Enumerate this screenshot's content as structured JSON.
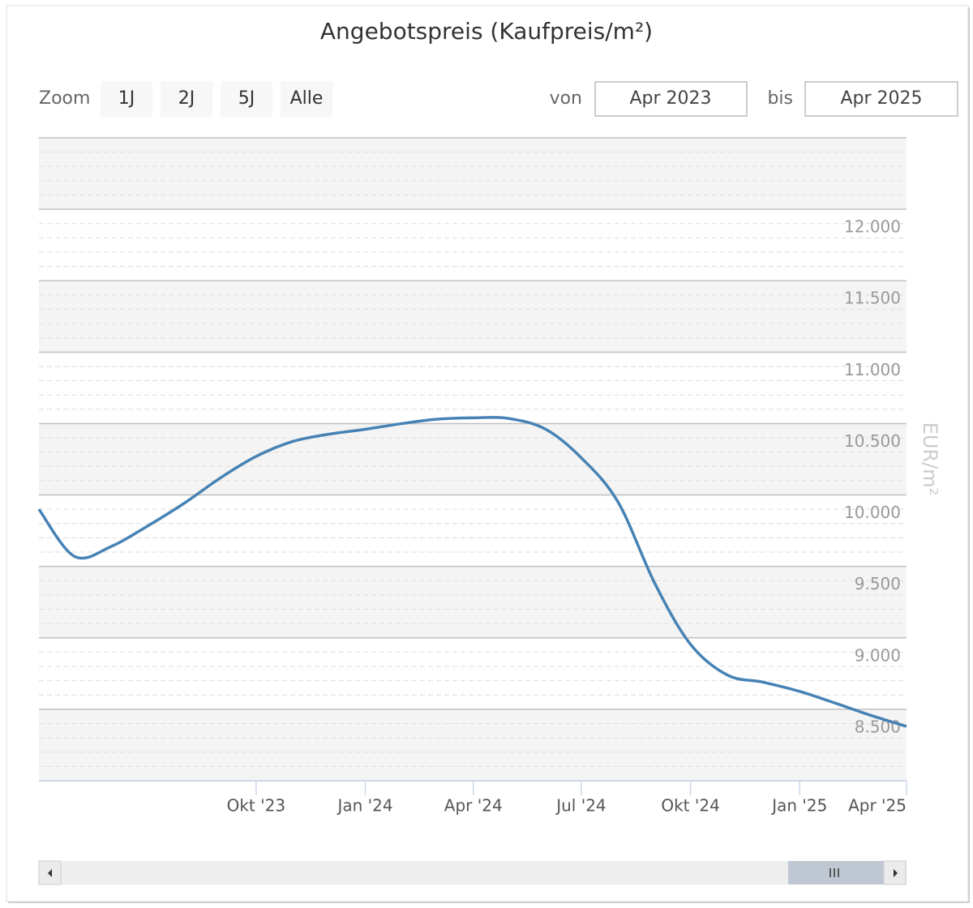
{
  "range_selector": {
    "label": "Zoom",
    "buttons": [
      "1J",
      "2J",
      "5J",
      "Alle"
    ],
    "from_label": "von",
    "from": "Apr 2023",
    "to_label": "bis",
    "to": "Apr 2025"
  },
  "chart_data": {
    "type": "line",
    "title": "Angebotspreis (Kaufpreis/m²)",
    "y_axis_label": "EUR/m²",
    "x": [
      "2023-04",
      "2023-05",
      "2023-06",
      "2023-07",
      "2023-08",
      "2023-09",
      "2023-10",
      "2023-11",
      "2023-12",
      "2024-01",
      "2024-02",
      "2024-03",
      "2024-04",
      "2024-05",
      "2024-06",
      "2024-07",
      "2024-08",
      "2024-09",
      "2024-10",
      "2024-11",
      "2024-12",
      "2025-01",
      "2025-02",
      "2025-03",
      "2025-04"
    ],
    "series": [
      {
        "name": "Angebotspreis",
        "color": "#4682b4",
        "values": [
          9900,
          9570,
          9640,
          9780,
          9940,
          10120,
          10270,
          10375,
          10425,
          10460,
          10500,
          10530,
          10540,
          10535,
          10460,
          10260,
          9950,
          9380,
          8955,
          8740,
          8690,
          8625,
          8540,
          8460,
          8380
        ]
      }
    ],
    "xlim": [
      "2023-04",
      "2025-04"
    ],
    "xticks": [
      {
        "value": "2023-10",
        "label": "Okt '23"
      },
      {
        "value": "2024-01",
        "label": "Jan '24"
      },
      {
        "value": "2024-04",
        "label": "Apr '24"
      },
      {
        "value": "2024-07",
        "label": "Jul '24"
      },
      {
        "value": "2024-10",
        "label": "Okt '24"
      },
      {
        "value": "2025-01",
        "label": "Jan '25"
      },
      {
        "value": "2025-04",
        "label": "Apr '25"
      }
    ],
    "ylim": [
      8000,
      12500
    ],
    "yticks": [
      {
        "value": 8500,
        "label": "8.500"
      },
      {
        "value": 9000,
        "label": "9.000"
      },
      {
        "value": 9500,
        "label": "9.500"
      },
      {
        "value": 10000,
        "label": "10.000"
      },
      {
        "value": 10500,
        "label": "10.500"
      },
      {
        "value": 11000,
        "label": "11.000"
      },
      {
        "value": 11500,
        "label": "11.500"
      },
      {
        "value": 12000,
        "label": "12.000"
      }
    ],
    "grid": true,
    "alternate_bands": true
  }
}
